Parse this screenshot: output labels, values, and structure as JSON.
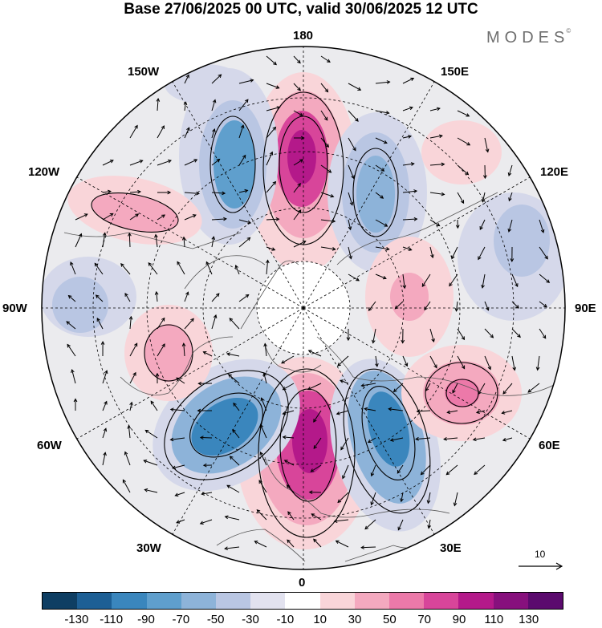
{
  "title": "Base 27/06/2025 00 UTC, valid 30/06/2025 12 UTC",
  "logo": {
    "text": "MODES",
    "mark": "©"
  },
  "longitude_labels": {
    "top": "180",
    "bottom": "0",
    "left": "90W",
    "right": "90E",
    "upper_left_1": "150W",
    "upper_left_2": "120W",
    "upper_right_1": "150E",
    "upper_right_2": "120E",
    "lower_left_1": "60W",
    "lower_left_2": "30W",
    "lower_right_1": "60E",
    "lower_right_2": "30E"
  },
  "reference_vector": {
    "value": "10"
  },
  "colorbar": {
    "colors": [
      "#0e3e63",
      "#1d5f95",
      "#3a86bd",
      "#5f9fcd",
      "#8db3d9",
      "#b9c6e3",
      "#e2e2ef",
      "#ffffff",
      "#f9d5d9",
      "#f4a9bf",
      "#ec79a9",
      "#d8459a",
      "#b4198a",
      "#87107d",
      "#5b0a6e"
    ],
    "ticks": [
      "-130",
      "-110",
      "-90",
      "-70",
      "-50",
      "-30",
      "-10",
      "10",
      "30",
      "50",
      "70",
      "90",
      "110",
      "130"
    ]
  },
  "anomaly_centers": [
    {
      "lon_label": "180",
      "sign": "positive",
      "level": 110
    },
    {
      "lon_label": "0",
      "sign": "positive",
      "level": 110
    },
    {
      "lon_label": "160W",
      "sign": "negative",
      "level": -70
    },
    {
      "lon_label": "160E",
      "sign": "negative",
      "level": -70
    },
    {
      "lon_label": "45W",
      "sign": "negative",
      "level": -90
    },
    {
      "lon_label": "25E",
      "sign": "negative",
      "level": -90
    },
    {
      "lon_label": "60E",
      "sign": "positive",
      "level": 70
    },
    {
      "lon_label": "120W",
      "sign": "positive",
      "level": 50
    },
    {
      "lon_label": "80W",
      "sign": "positive",
      "level": 50
    }
  ]
}
